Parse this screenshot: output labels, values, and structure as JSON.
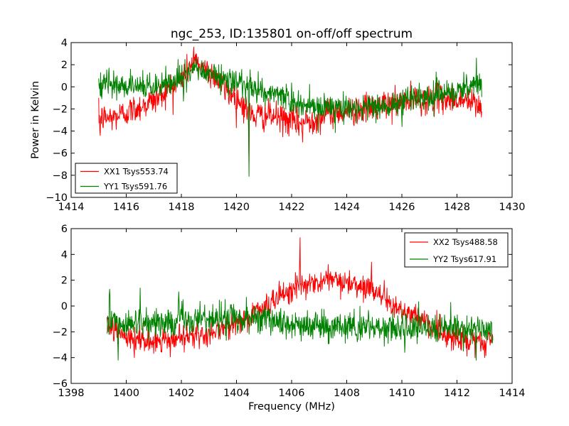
{
  "figure": {
    "title": "ngc_253, ID:135801 on-off/off spectrum",
    "ylabel": "Power in Kelvin",
    "xlabel": "Frequency (MHz)"
  },
  "chart_data": [
    {
      "type": "line",
      "title": "ngc_253, ID:135801 on-off/off spectrum",
      "xlabel": "",
      "ylabel": "Power in Kelvin",
      "xlim": [
        1414,
        1430
      ],
      "ylim": [
        -10,
        4
      ],
      "xticks": [
        1414,
        1416,
        1418,
        1420,
        1422,
        1424,
        1426,
        1428,
        1430
      ],
      "yticks": [
        -10,
        -8,
        -6,
        -4,
        -2,
        0,
        2,
        4
      ],
      "grid": false,
      "legend_position": "lower-left",
      "x_range": [
        1415.0,
        1428.9
      ],
      "series": [
        {
          "name": "XX1 Tsys553.74",
          "color": "#ff0000",
          "noise": 0.9,
          "baseline": [
            [
              1415.0,
              -2.8
            ],
            [
              1415.5,
              -2.8
            ],
            [
              1416.0,
              -2.3
            ],
            [
              1416.5,
              -1.8
            ],
            [
              1417.0,
              -1.2
            ],
            [
              1417.5,
              -0.3
            ],
            [
              1418.0,
              0.7
            ],
            [
              1418.4,
              2.2
            ],
            [
              1418.8,
              1.8
            ],
            [
              1419.2,
              1.0
            ],
            [
              1419.6,
              -0.3
            ],
            [
              1420.0,
              -1.0
            ],
            [
              1420.3,
              -1.8
            ],
            [
              1420.5,
              -2.6
            ],
            [
              1420.7,
              -2.6
            ],
            [
              1421.2,
              -2.6
            ],
            [
              1421.8,
              -3.0
            ],
            [
              1422.3,
              -3.3
            ],
            [
              1422.8,
              -2.9
            ],
            [
              1423.5,
              -2.3
            ],
            [
              1424.5,
              -2.1
            ],
            [
              1425.5,
              -1.6
            ],
            [
              1426.5,
              -1.2
            ],
            [
              1427.5,
              -1.0
            ],
            [
              1428.2,
              -1.2
            ],
            [
              1428.9,
              -1.8
            ]
          ],
          "spikes": [
            [
              1420.45,
              -6.8
            ],
            [
              1418.45,
              3.6
            ],
            [
              1422.4,
              -5.0
            ],
            [
              1415.05,
              -4.4
            ]
          ]
        },
        {
          "name": "YY1 Tsys591.76",
          "color": "#008000",
          "noise": 0.85,
          "baseline": [
            [
              1415.0,
              0.0
            ],
            [
              1416.0,
              0.1
            ],
            [
              1417.0,
              0.1
            ],
            [
              1418.0,
              0.7
            ],
            [
              1418.5,
              1.7
            ],
            [
              1419.0,
              1.2
            ],
            [
              1419.5,
              0.8
            ],
            [
              1420.0,
              0.5
            ],
            [
              1420.4,
              0.3
            ],
            [
              1420.8,
              -0.2
            ],
            [
              1421.5,
              -0.7
            ],
            [
              1422.0,
              -1.4
            ],
            [
              1422.5,
              -1.8
            ],
            [
              1423.5,
              -2.0
            ],
            [
              1424.5,
              -1.9
            ],
            [
              1425.5,
              -1.7
            ],
            [
              1426.5,
              -1.0
            ],
            [
              1427.5,
              -0.6
            ],
            [
              1428.3,
              0.0
            ],
            [
              1428.9,
              0.2
            ]
          ],
          "spikes": [
            [
              1420.45,
              -8.1
            ],
            [
              1428.7,
              2.6
            ],
            [
              1426.0,
              -3.6
            ]
          ]
        }
      ]
    },
    {
      "type": "line",
      "title": "",
      "xlabel": "Frequency (MHz)",
      "ylabel": "",
      "xlim": [
        1398,
        1414
      ],
      "ylim": [
        -6,
        6
      ],
      "xticks": [
        1398,
        1400,
        1402,
        1404,
        1406,
        1408,
        1410,
        1412,
        1414
      ],
      "yticks": [
        -6,
        -4,
        -2,
        0,
        2,
        4,
        6
      ],
      "grid": false,
      "legend_position": "upper-right",
      "x_range": [
        1399.3,
        1413.3
      ],
      "series": [
        {
          "name": "XX2 Tsys488.58",
          "color": "#ff0000",
          "noise": 0.65,
          "baseline": [
            [
              1399.3,
              -1.3
            ],
            [
              1399.7,
              -2.0
            ],
            [
              1400.0,
              -2.5
            ],
            [
              1401.0,
              -2.8
            ],
            [
              1402.0,
              -2.5
            ],
            [
              1403.0,
              -2.2
            ],
            [
              1404.0,
              -1.2
            ],
            [
              1404.5,
              -0.7
            ],
            [
              1405.0,
              -0.1
            ],
            [
              1405.5,
              0.5
            ],
            [
              1406.0,
              1.2
            ],
            [
              1406.5,
              1.6
            ],
            [
              1407.0,
              1.9
            ],
            [
              1407.5,
              2.0
            ],
            [
              1408.0,
              1.8
            ],
            [
              1408.5,
              1.6
            ],
            [
              1409.0,
              1.2
            ],
            [
              1409.5,
              0.4
            ],
            [
              1410.0,
              -0.3
            ],
            [
              1410.5,
              -0.8
            ],
            [
              1411.0,
              -1.6
            ],
            [
              1411.5,
              -2.2
            ],
            [
              1412.0,
              -2.5
            ],
            [
              1412.5,
              -2.6
            ],
            [
              1413.0,
              -2.8
            ],
            [
              1413.3,
              -2.5
            ]
          ],
          "spikes": [
            [
              1406.3,
              5.3
            ],
            [
              1408.9,
              3.4
            ],
            [
              1400.3,
              -4.0
            ],
            [
              1413.0,
              -4.0
            ]
          ]
        },
        {
          "name": "YY2 Tsys617.91",
          "color": "#008000",
          "noise": 0.8,
          "baseline": [
            [
              1399.3,
              -1.2
            ],
            [
              1400.0,
              -1.5
            ],
            [
              1401.0,
              -1.3
            ],
            [
              1402.0,
              -1.0
            ],
            [
              1403.0,
              -1.1
            ],
            [
              1404.0,
              -1.0
            ],
            [
              1405.0,
              -1.0
            ],
            [
              1406.0,
              -1.4
            ],
            [
              1407.0,
              -1.6
            ],
            [
              1408.0,
              -1.7
            ],
            [
              1409.0,
              -1.6
            ],
            [
              1410.0,
              -1.7
            ],
            [
              1411.0,
              -1.8
            ],
            [
              1412.0,
              -1.8
            ],
            [
              1413.3,
              -1.8
            ]
          ],
          "spikes": [
            [
              1399.4,
              1.3
            ],
            [
              1400.5,
              1.4
            ],
            [
              1401.9,
              1.1
            ],
            [
              1410.1,
              -3.6
            ],
            [
              1399.7,
              -4.2
            ],
            [
              1412.7,
              -4.2
            ]
          ]
        }
      ]
    }
  ]
}
